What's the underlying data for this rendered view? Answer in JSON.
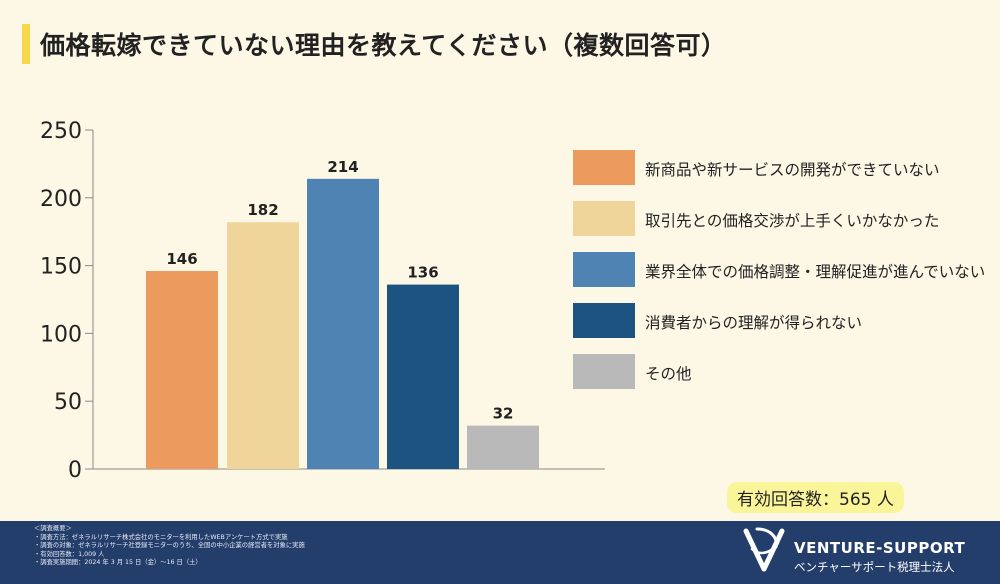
{
  "title": "価格転嫁できていない理由を教えてください（複数回答可）",
  "chart_data": {
    "type": "bar",
    "categories": [
      "新商品や新サービスの開発ができていない",
      "取引先との価格交渉が上手くいかなかった",
      "業界全体での価格調整・理解促進が進んでいない",
      "消費者からの理解が得られない",
      "その他"
    ],
    "values": [
      146,
      182,
      214,
      136,
      32
    ],
    "colors": [
      "#EC9A5D",
      "#EFD59A",
      "#4F83B3",
      "#1C5380",
      "#B9B9B9"
    ],
    "yticks": [
      "0",
      "50",
      "100",
      "150",
      "200",
      "250"
    ],
    "ylim": [
      0,
      250
    ],
    "legend_position": "right",
    "grid": false
  },
  "respondents": "有効回答数：565 人",
  "notes": [
    "＜調査概要＞",
    "・調査方法：ゼネラルリサーチ株式会社のモニターを利用したWEBアンケート方式で実施",
    "・調査の対象：ゼネラルリサーチ社登録モニターのうち、全国の中小企業の経営者を対象に実施",
    "・有効回答数：1,009 人",
    "・調査実施期間：2024 年 3 月 15 日（金）～16 日（土）"
  ],
  "logo": {
    "name_en": "VENTURE-SUPPORT",
    "name_jp": "ベンチャーサポート税理士法人"
  },
  "colors": {
    "background": "#FDF8E6",
    "title_accent": "#F6D84A",
    "footer": "#243E6C",
    "highlight": "#FBF59A"
  }
}
